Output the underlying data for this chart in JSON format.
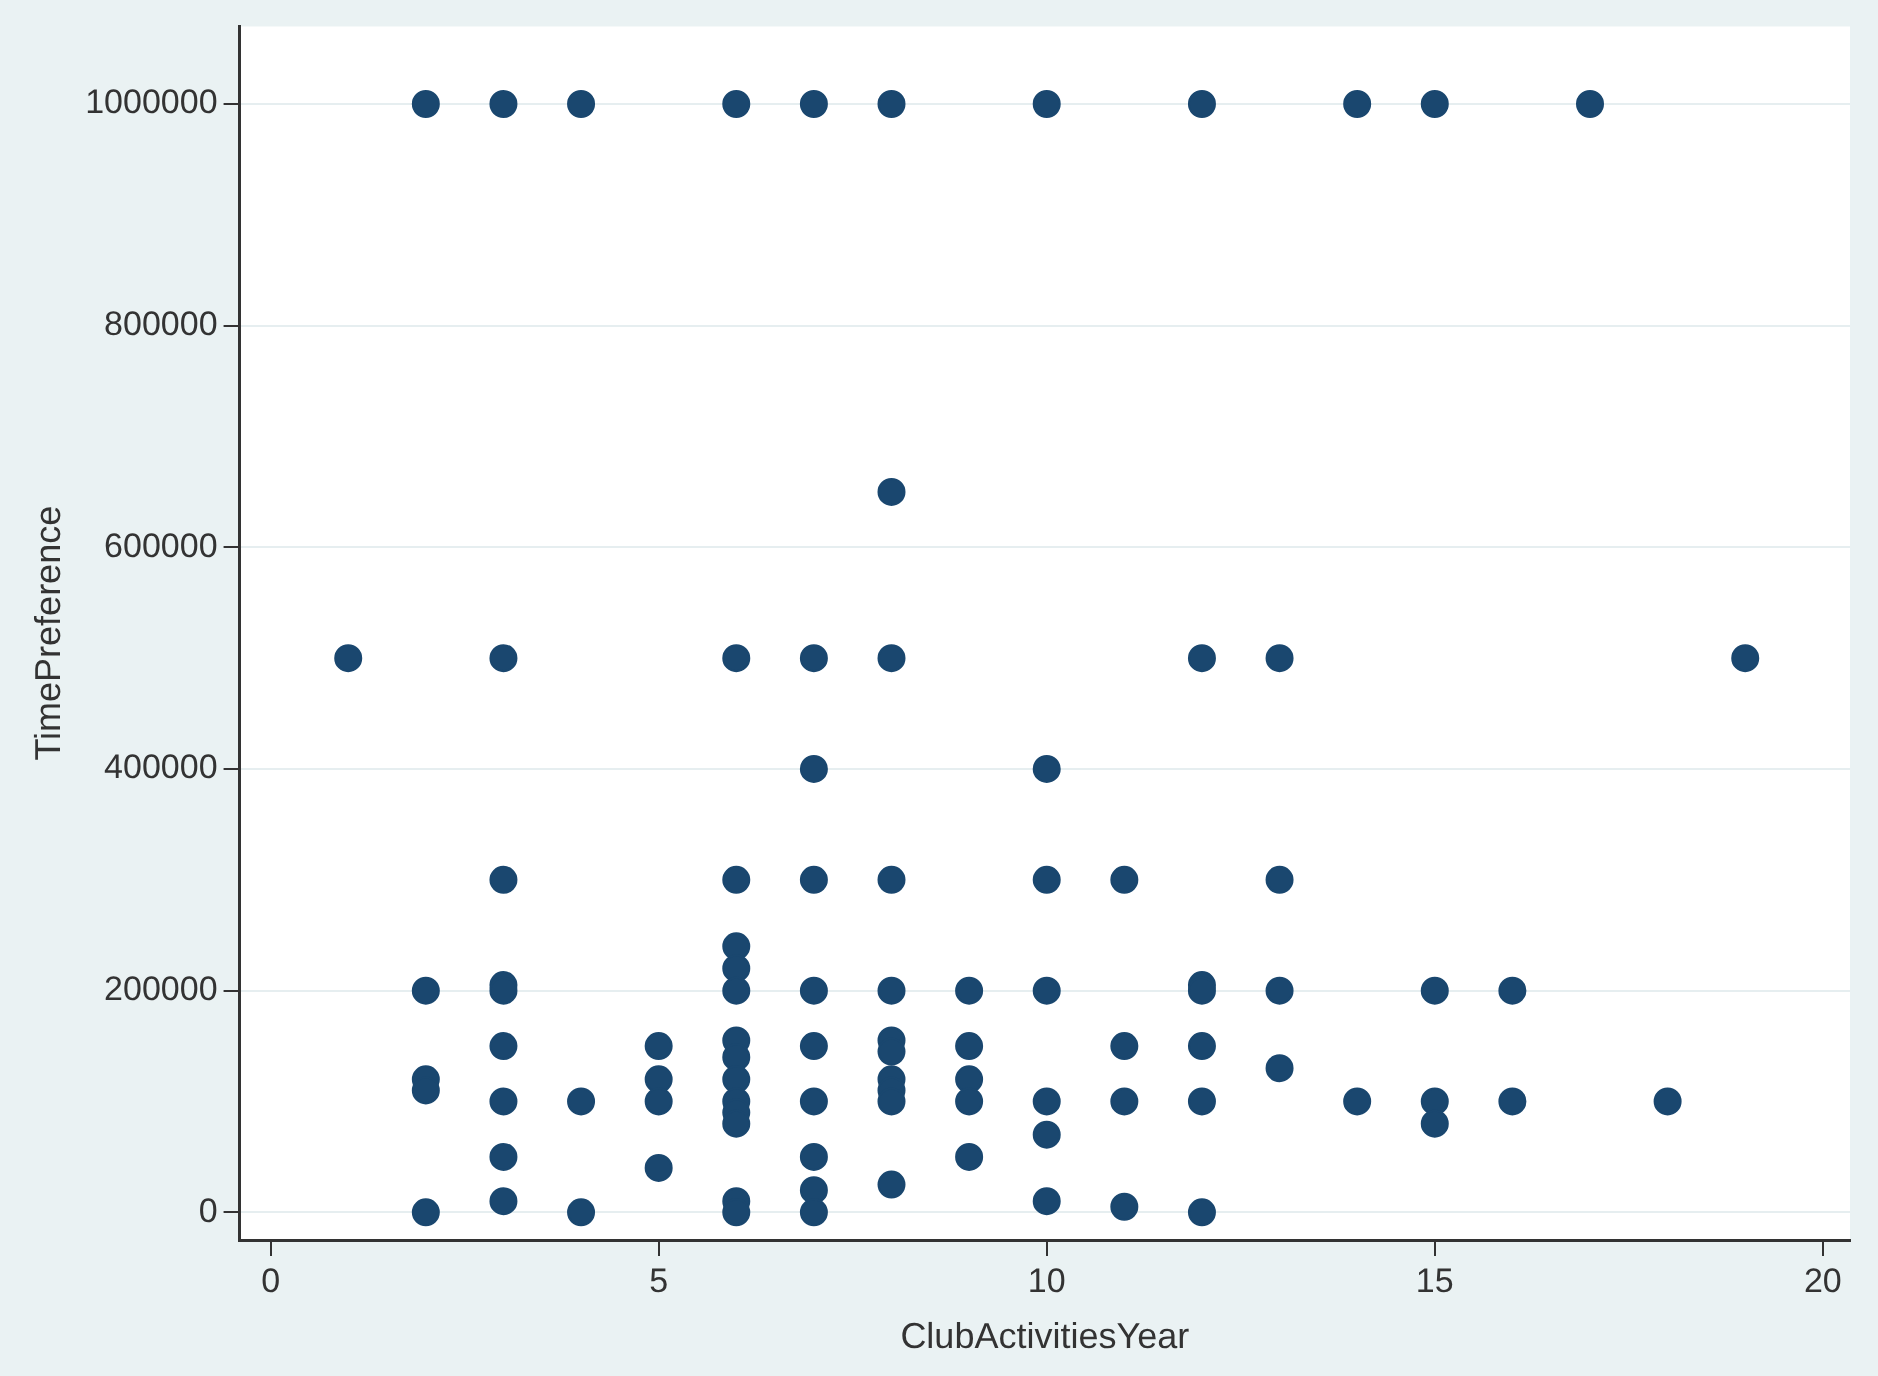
{
  "chart_data": {
    "type": "scatter",
    "xlabel": "ClubActivitiesYear",
    "ylabel": "TimePreference",
    "marker": "circle",
    "grid": "y",
    "legend": false,
    "xlim": [
      -0.4,
      20.35
    ],
    "xticks": [
      0,
      5,
      10,
      15,
      20
    ],
    "ylim": [
      -25000,
      1070000
    ],
    "yticks": [
      0,
      200000,
      400000,
      600000,
      800000,
      1000000
    ],
    "series": [
      {
        "color": "#1a476f",
        "x": [
          2,
          3,
          4,
          6,
          7,
          8,
          10,
          12,
          14,
          15,
          17,
          8,
          1,
          3,
          6,
          7,
          8,
          12,
          13,
          19,
          7,
          10,
          3,
          6,
          7,
          8,
          10,
          11,
          13,
          2,
          2,
          2,
          2,
          3,
          3,
          3,
          3,
          3,
          3,
          4,
          4,
          5,
          5,
          5,
          5,
          6,
          6,
          6,
          6,
          6,
          6,
          6,
          6,
          6,
          6,
          6,
          7,
          7,
          7,
          7,
          7,
          7,
          8,
          8,
          8,
          8,
          8,
          8,
          8,
          9,
          9,
          9,
          9,
          9,
          10,
          10,
          10,
          10,
          11,
          11,
          11,
          12,
          12,
          12,
          12,
          12,
          13,
          13,
          14,
          15,
          15,
          15,
          16,
          16,
          18
        ],
        "values": [
          1000000,
          1000000,
          1000000,
          1000000,
          1000000,
          1000000,
          1000000,
          1000000,
          1000000,
          1000000,
          1000000,
          650000,
          500000,
          500000,
          500000,
          500000,
          500000,
          500000,
          500000,
          500000,
          400000,
          400000,
          300000,
          300000,
          300000,
          300000,
          300000,
          300000,
          300000,
          200000,
          120000,
          110000,
          0,
          205000,
          200000,
          150000,
          100000,
          50000,
          10000,
          100000,
          0,
          150000,
          120000,
          100000,
          40000,
          240000,
          220000,
          200000,
          155000,
          140000,
          120000,
          100000,
          90000,
          80000,
          10000,
          0,
          200000,
          150000,
          100000,
          50000,
          20000,
          0,
          200000,
          155000,
          145000,
          120000,
          110000,
          100000,
          25000,
          200000,
          150000,
          120000,
          100000,
          50000,
          200000,
          100000,
          70000,
          10000,
          150000,
          100000,
          5000,
          205000,
          200000,
          150000,
          100000,
          0,
          200000,
          130000,
          100000,
          200000,
          100000,
          80000,
          200000,
          100000,
          100000
        ]
      }
    ]
  }
}
